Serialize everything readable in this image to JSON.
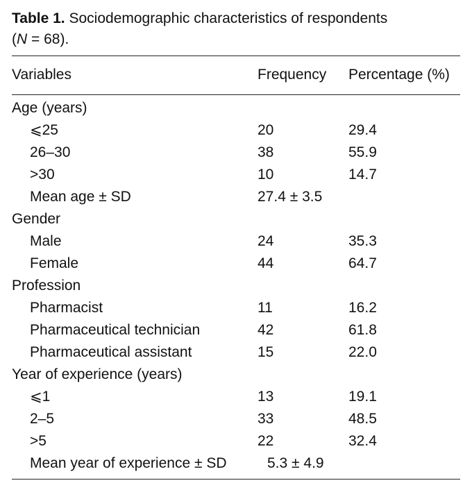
{
  "caption": {
    "label": "Table 1.",
    "text": "Sociodemographic characteristics of respondents",
    "n_open": "(",
    "n_var": "N",
    "n_rest": " = 68)."
  },
  "header": {
    "variables": "Variables",
    "frequency": "Frequency",
    "percentage": "Percentage (%)"
  },
  "rows": [
    {
      "label": "Age (years)",
      "frequency": "",
      "percentage": ""
    },
    {
      "label": "⩽25",
      "frequency": "20",
      "percentage": "29.4"
    },
    {
      "label": "26–30",
      "frequency": "38",
      "percentage": "55.9"
    },
    {
      "label": ">30",
      "frequency": "10",
      "percentage": "14.7"
    },
    {
      "label": "Mean age ± SD",
      "frequency": "27.4 ± 3.5",
      "percentage": ""
    },
    {
      "label": "Gender",
      "frequency": "",
      "percentage": ""
    },
    {
      "label": "Male",
      "frequency": "24",
      "percentage": "35.3"
    },
    {
      "label": "Female",
      "frequency": "44",
      "percentage": "64.7"
    },
    {
      "label": "Profession",
      "frequency": "",
      "percentage": ""
    },
    {
      "label": "Pharmacist",
      "frequency": "11",
      "percentage": "16.2"
    },
    {
      "label": "Pharmaceutical technician",
      "frequency": "42",
      "percentage": "61.8"
    },
    {
      "label": "Pharmaceutical assistant",
      "frequency": "15",
      "percentage": "22.0"
    },
    {
      "label": "Year of experience (years)",
      "frequency": "",
      "percentage": ""
    },
    {
      "label": "⩽1",
      "frequency": "13",
      "percentage": "19.1"
    },
    {
      "label": "2–5",
      "frequency": "33",
      "percentage": "48.5"
    },
    {
      "label": ">5",
      "frequency": "22",
      "percentage": "32.4"
    },
    {
      "label": "Mean year of experience ± SD",
      "frequency": "5.3 ± 4.9",
      "percentage": ""
    }
  ]
}
